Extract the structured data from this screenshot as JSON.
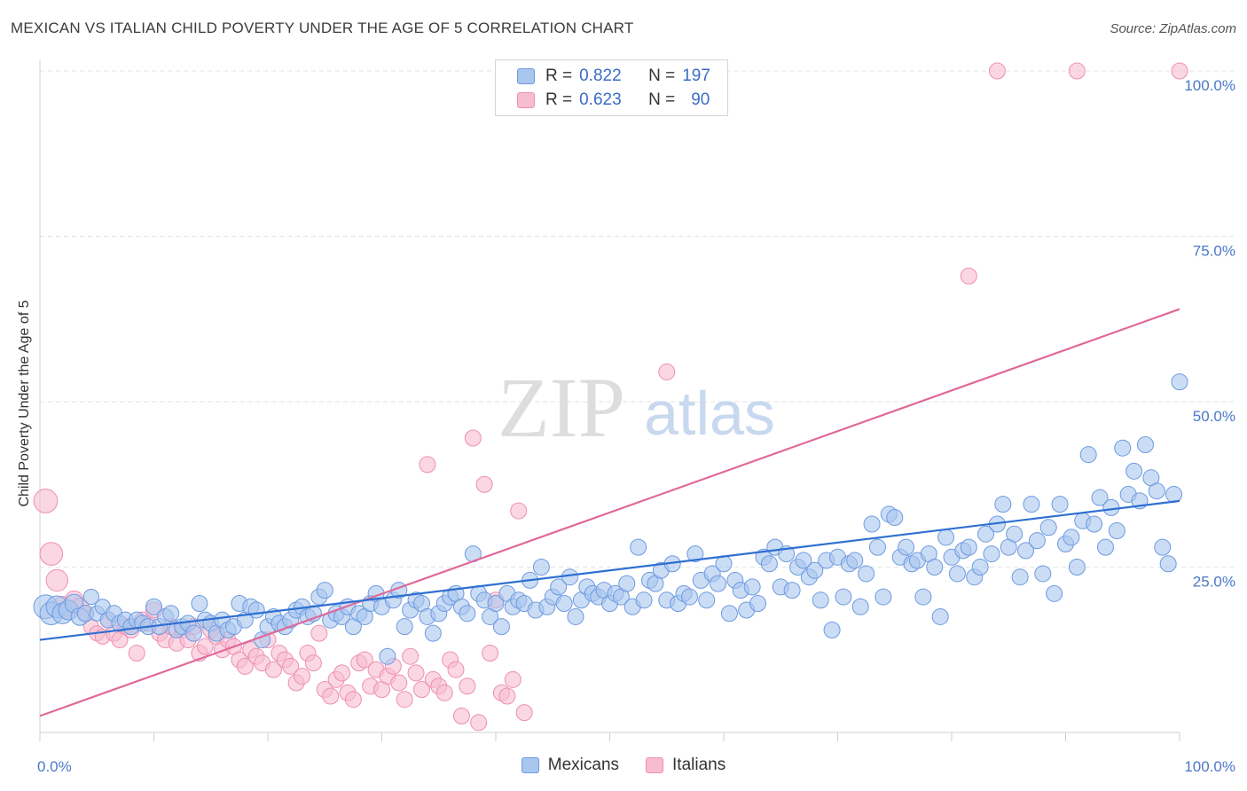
{
  "header": {
    "title": "MEXICAN VS ITALIAN CHILD POVERTY UNDER THE AGE OF 5 CORRELATION CHART",
    "source": "Source: ZipAtlas.com"
  },
  "colors": {
    "mexicans_fill": "#a9c6ef",
    "mexicans_stroke": "#6d9ae0",
    "mexicans_line": "#2f6fd1",
    "italians_fill": "#f7bcd0",
    "italians_stroke": "#ee8fb0",
    "italians_line": "#e0699a",
    "tick_text": "#4a78c9"
  },
  "legend": {
    "rows": [
      {
        "r_label": "R =",
        "r_value": "0.822",
        "n_label": "N =",
        "n_value": "197"
      },
      {
        "r_label": "R =",
        "r_value": "0.623",
        "n_label": "N =",
        "n_value": "90"
      }
    ]
  },
  "watermark": {
    "zip": "ZIP",
    "atlas": "atlas"
  },
  "chart_data": {
    "type": "scatter",
    "title": "MEXICAN VS ITALIAN CHILD POVERTY UNDER THE AGE OF 5 CORRELATION CHART",
    "xlabel": "",
    "ylabel": "Child Poverty Under the Age of 5",
    "xlim": [
      0,
      100
    ],
    "ylim": [
      0,
      100
    ],
    "x_tick_labels": [
      "0.0%",
      "100.0%"
    ],
    "y_ticks": [
      25,
      50,
      75,
      100
    ],
    "y_tick_labels": [
      "25.0%",
      "50.0%",
      "75.0%",
      "100.0%"
    ],
    "grid": "horizontal dashed",
    "legend_position": "top-center",
    "series": [
      {
        "name": "Mexicans",
        "r": 0.822,
        "n": 197,
        "trend": {
          "x": [
            0,
            100
          ],
          "y": [
            14.0,
            35.0
          ]
        },
        "points": [
          [
            0.5,
            19.0
          ],
          [
            1.0,
            18.0
          ],
          [
            1.5,
            19.0
          ],
          [
            2.0,
            18.0
          ],
          [
            2.5,
            18.5
          ],
          [
            3.0,
            19.5
          ],
          [
            3.5,
            17.5
          ],
          [
            4.0,
            18.0
          ],
          [
            4.5,
            20.5
          ],
          [
            5.0,
            18.0
          ],
          [
            5.5,
            19.0
          ],
          [
            6.0,
            17.0
          ],
          [
            6.5,
            18.0
          ],
          [
            7.0,
            16.5
          ],
          [
            7.5,
            17.0
          ],
          [
            8.0,
            16.0
          ],
          [
            8.5,
            17.0
          ],
          [
            9.0,
            16.5
          ],
          [
            9.5,
            16.0
          ],
          [
            10.0,
            19.0
          ],
          [
            10.5,
            16.0
          ],
          [
            11.0,
            17.5
          ],
          [
            11.5,
            18.0
          ],
          [
            12.0,
            15.5
          ],
          [
            12.5,
            16.0
          ],
          [
            13.0,
            16.5
          ],
          [
            13.5,
            15.0
          ],
          [
            14.0,
            19.5
          ],
          [
            14.5,
            17.0
          ],
          [
            15.0,
            16.5
          ],
          [
            15.5,
            15.0
          ],
          [
            16.0,
            17.0
          ],
          [
            16.5,
            15.5
          ],
          [
            17.0,
            16.0
          ],
          [
            17.5,
            19.5
          ],
          [
            18.0,
            17.0
          ],
          [
            18.5,
            19.0
          ],
          [
            19.0,
            18.5
          ],
          [
            19.5,
            14.0
          ],
          [
            20.0,
            16.0
          ],
          [
            20.5,
            17.5
          ],
          [
            21.0,
            16.5
          ],
          [
            21.5,
            16.0
          ],
          [
            22.0,
            17.0
          ],
          [
            22.5,
            18.5
          ],
          [
            23.0,
            19.0
          ],
          [
            23.5,
            17.5
          ],
          [
            24.0,
            18.0
          ],
          [
            24.5,
            20.5
          ],
          [
            25.0,
            21.5
          ],
          [
            25.5,
            17.0
          ],
          [
            26.0,
            18.0
          ],
          [
            26.5,
            17.5
          ],
          [
            27.0,
            19.0
          ],
          [
            27.5,
            16.0
          ],
          [
            28.0,
            18.0
          ],
          [
            28.5,
            17.5
          ],
          [
            29.0,
            19.5
          ],
          [
            29.5,
            21.0
          ],
          [
            30.0,
            19.0
          ],
          [
            30.5,
            11.5
          ],
          [
            31.0,
            20.0
          ],
          [
            31.5,
            21.5
          ],
          [
            32.0,
            16.0
          ],
          [
            32.5,
            18.5
          ],
          [
            33.0,
            20.0
          ],
          [
            33.5,
            19.5
          ],
          [
            34.0,
            17.5
          ],
          [
            34.5,
            15.0
          ],
          [
            35.0,
            18.0
          ],
          [
            35.5,
            19.5
          ],
          [
            36.0,
            20.5
          ],
          [
            36.5,
            21.0
          ],
          [
            37.0,
            19.0
          ],
          [
            37.5,
            18.0
          ],
          [
            38.0,
            27.0
          ],
          [
            38.5,
            21.0
          ],
          [
            39.0,
            20.0
          ],
          [
            39.5,
            17.5
          ],
          [
            40.0,
            19.5
          ],
          [
            40.5,
            16.0
          ],
          [
            41.0,
            21.0
          ],
          [
            41.5,
            19.0
          ],
          [
            42.0,
            20.0
          ],
          [
            42.5,
            19.5
          ],
          [
            43.0,
            23.0
          ],
          [
            43.5,
            18.5
          ],
          [
            44.0,
            25.0
          ],
          [
            44.5,
            19.0
          ],
          [
            45.0,
            20.5
          ],
          [
            45.5,
            22.0
          ],
          [
            46.0,
            19.5
          ],
          [
            46.5,
            23.5
          ],
          [
            47.0,
            17.5
          ],
          [
            47.5,
            20.0
          ],
          [
            48.0,
            22.0
          ],
          [
            48.5,
            21.0
          ],
          [
            49.0,
            20.5
          ],
          [
            49.5,
            21.5
          ],
          [
            50.0,
            19.5
          ],
          [
            50.5,
            21.0
          ],
          [
            51.0,
            20.5
          ],
          [
            51.5,
            22.5
          ],
          [
            52.0,
            19.0
          ],
          [
            52.5,
            28.0
          ],
          [
            53.0,
            20.0
          ],
          [
            53.5,
            23.0
          ],
          [
            54.0,
            22.5
          ],
          [
            54.5,
            24.5
          ],
          [
            55.0,
            20.0
          ],
          [
            55.5,
            25.5
          ],
          [
            56.0,
            19.5
          ],
          [
            56.5,
            21.0
          ],
          [
            57.0,
            20.5
          ],
          [
            57.5,
            27.0
          ],
          [
            58.0,
            23.0
          ],
          [
            58.5,
            20.0
          ],
          [
            59.0,
            24.0
          ],
          [
            59.5,
            22.5
          ],
          [
            60.0,
            25.5
          ],
          [
            60.5,
            18.0
          ],
          [
            61.0,
            23.0
          ],
          [
            61.5,
            21.5
          ],
          [
            62.0,
            18.5
          ],
          [
            62.5,
            22.0
          ],
          [
            63.0,
            19.5
          ],
          [
            63.5,
            26.5
          ],
          [
            64.0,
            25.5
          ],
          [
            64.5,
            28.0
          ],
          [
            65.0,
            22.0
          ],
          [
            65.5,
            27.0
          ],
          [
            66.0,
            21.5
          ],
          [
            66.5,
            25.0
          ],
          [
            67.0,
            26.0
          ],
          [
            67.5,
            23.5
          ],
          [
            68.0,
            24.5
          ],
          [
            68.5,
            20.0
          ],
          [
            69.0,
            26.0
          ],
          [
            69.5,
            15.5
          ],
          [
            70.0,
            26.5
          ],
          [
            70.5,
            20.5
          ],
          [
            71.0,
            25.5
          ],
          [
            71.5,
            26.0
          ],
          [
            72.0,
            19.0
          ],
          [
            72.5,
            24.0
          ],
          [
            73.0,
            31.5
          ],
          [
            73.5,
            28.0
          ],
          [
            74.0,
            20.5
          ],
          [
            74.5,
            33.0
          ],
          [
            75.0,
            32.5
          ],
          [
            75.5,
            26.5
          ],
          [
            76.0,
            28.0
          ],
          [
            76.5,
            25.5
          ],
          [
            77.0,
            26.0
          ],
          [
            77.5,
            20.5
          ],
          [
            78.0,
            27.0
          ],
          [
            78.5,
            25.0
          ],
          [
            79.0,
            17.5
          ],
          [
            79.5,
            29.5
          ],
          [
            80.0,
            26.5
          ],
          [
            80.5,
            24.0
          ],
          [
            81.0,
            27.5
          ],
          [
            81.5,
            28.0
          ],
          [
            82.0,
            23.5
          ],
          [
            82.5,
            25.0
          ],
          [
            83.0,
            30.0
          ],
          [
            83.5,
            27.0
          ],
          [
            84.0,
            31.5
          ],
          [
            84.5,
            34.5
          ],
          [
            85.0,
            28.0
          ],
          [
            85.5,
            30.0
          ],
          [
            86.0,
            23.5
          ],
          [
            86.5,
            27.5
          ],
          [
            87.0,
            34.5
          ],
          [
            87.5,
            29.0
          ],
          [
            88.0,
            24.0
          ],
          [
            88.5,
            31.0
          ],
          [
            89.0,
            21.0
          ],
          [
            89.5,
            34.5
          ],
          [
            90.0,
            28.5
          ],
          [
            90.5,
            29.5
          ],
          [
            91.0,
            25.0
          ],
          [
            91.5,
            32.0
          ],
          [
            92.0,
            42.0
          ],
          [
            92.5,
            31.5
          ],
          [
            93.0,
            35.5
          ],
          [
            93.5,
            28.0
          ],
          [
            94.0,
            34.0
          ],
          [
            94.5,
            30.5
          ],
          [
            95.0,
            43.0
          ],
          [
            95.5,
            36.0
          ],
          [
            96.0,
            39.5
          ],
          [
            96.5,
            35.0
          ],
          [
            97.0,
            43.5
          ],
          [
            97.5,
            38.5
          ],
          [
            98.0,
            36.5
          ],
          [
            98.5,
            28.0
          ],
          [
            99.0,
            25.5
          ],
          [
            99.5,
            36.0
          ],
          [
            100.0,
            53.0
          ]
        ]
      },
      {
        "name": "Italians",
        "r": 0.623,
        "n": 90,
        "trend": {
          "x": [
            0,
            100
          ],
          "y": [
            2.5,
            64.0
          ]
        },
        "points": [
          [
            0.5,
            35.0
          ],
          [
            1.0,
            27.0
          ],
          [
            1.5,
            23.0
          ],
          [
            2.0,
            19.0
          ],
          [
            2.5,
            18.5
          ],
          [
            3.0,
            20.0
          ],
          [
            3.5,
            19.0
          ],
          [
            4.0,
            18.0
          ],
          [
            4.5,
            16.0
          ],
          [
            5.0,
            15.0
          ],
          [
            5.5,
            14.5
          ],
          [
            6.0,
            17.0
          ],
          [
            6.5,
            15.0
          ],
          [
            7.0,
            14.0
          ],
          [
            7.5,
            16.0
          ],
          [
            8.0,
            15.5
          ],
          [
            8.5,
            12.0
          ],
          [
            9.0,
            17.0
          ],
          [
            9.5,
            16.5
          ],
          [
            10.0,
            18.5
          ],
          [
            10.5,
            15.0
          ],
          [
            11.0,
            14.0
          ],
          [
            11.5,
            16.0
          ],
          [
            12.0,
            13.5
          ],
          [
            12.5,
            15.5
          ],
          [
            13.0,
            14.0
          ],
          [
            13.5,
            16.0
          ],
          [
            14.0,
            12.0
          ],
          [
            14.5,
            13.0
          ],
          [
            15.0,
            15.5
          ],
          [
            15.5,
            14.5
          ],
          [
            16.0,
            12.5
          ],
          [
            16.5,
            14.0
          ],
          [
            17.0,
            13.0
          ],
          [
            17.5,
            11.0
          ],
          [
            18.0,
            10.0
          ],
          [
            18.5,
            12.5
          ],
          [
            19.0,
            11.5
          ],
          [
            19.5,
            10.5
          ],
          [
            20.0,
            14.0
          ],
          [
            20.5,
            9.5
          ],
          [
            21.0,
            12.0
          ],
          [
            21.5,
            11.0
          ],
          [
            22.0,
            10.0
          ],
          [
            22.5,
            7.5
          ],
          [
            23.0,
            8.5
          ],
          [
            23.5,
            12.0
          ],
          [
            24.0,
            10.5
          ],
          [
            24.5,
            15.0
          ],
          [
            25.0,
            6.5
          ],
          [
            25.5,
            5.5
          ],
          [
            26.0,
            8.0
          ],
          [
            26.5,
            9.0
          ],
          [
            27.0,
            6.0
          ],
          [
            27.5,
            5.0
          ],
          [
            28.0,
            10.5
          ],
          [
            28.5,
            11.0
          ],
          [
            29.0,
            7.0
          ],
          [
            29.5,
            9.5
          ],
          [
            30.0,
            6.5
          ],
          [
            30.5,
            8.5
          ],
          [
            31.0,
            10.0
          ],
          [
            31.5,
            7.5
          ],
          [
            32.0,
            5.0
          ],
          [
            32.5,
            11.5
          ],
          [
            33.0,
            9.0
          ],
          [
            33.5,
            6.5
          ],
          [
            34.0,
            40.5
          ],
          [
            34.5,
            8.0
          ],
          [
            35.0,
            7.0
          ],
          [
            35.5,
            6.0
          ],
          [
            36.0,
            11.0
          ],
          [
            36.5,
            9.5
          ],
          [
            37.0,
            2.5
          ],
          [
            37.5,
            7.0
          ],
          [
            38.0,
            44.5
          ],
          [
            38.5,
            1.5
          ],
          [
            39.0,
            37.5
          ],
          [
            39.5,
            12.0
          ],
          [
            40.0,
            20.0
          ],
          [
            40.5,
            6.0
          ],
          [
            41.0,
            5.5
          ],
          [
            41.5,
            8.0
          ],
          [
            42.0,
            33.5
          ],
          [
            42.5,
            3.0
          ],
          [
            55.0,
            54.5
          ],
          [
            81.5,
            69.0
          ],
          [
            84.0,
            100.0
          ],
          [
            91.0,
            100.0
          ],
          [
            100.0,
            100.0
          ]
        ]
      }
    ]
  },
  "bottom_legend": {
    "items": [
      {
        "label": "Mexicans"
      },
      {
        "label": "Italians"
      }
    ]
  }
}
